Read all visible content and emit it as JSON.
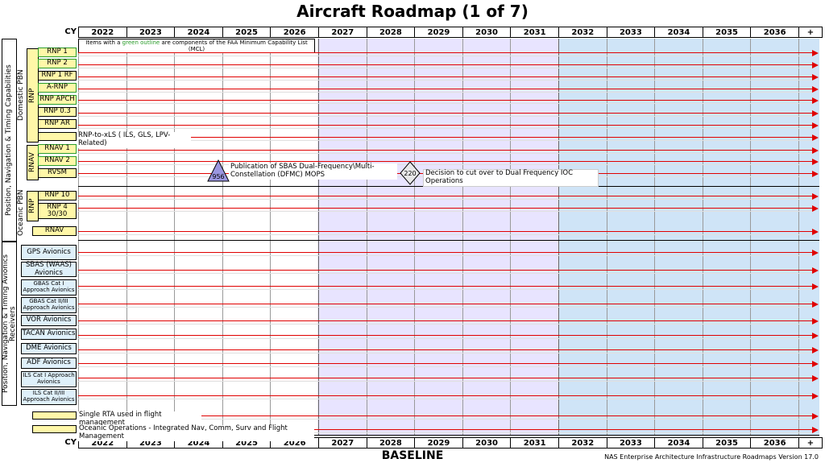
{
  "header": {
    "title": "Aircraft Roadmap (1 of 7)"
  },
  "timeline": {
    "cy_label": "CY",
    "years": [
      "2022",
      "2023",
      "2024",
      "2025",
      "2026",
      "2027",
      "2028",
      "2029",
      "2030",
      "2031",
      "2032",
      "2033",
      "2034",
      "2035",
      "2036",
      "+"
    ]
  },
  "legend": {
    "before": "Items with a ",
    "green": "green outline",
    "after": " are components of the FAA Minimum Capability List (MCL)"
  },
  "groups": {
    "pnt_capabilities": "Position, Navigation & Timing Capabilities",
    "domestic_pbn": "Domestic PBN",
    "rnp": "RNP",
    "rnav": "RNAV",
    "oceanic_pbn": "Oceanic PBN",
    "oceanic_rnp": "RNP",
    "avionics": "Position, Navigation & Timing Avionics Receivers"
  },
  "items": {
    "rnp1": "RNP 1",
    "rnp2": "RNP 2",
    "rnp1rf": "RNP 1 RF",
    "arnp": "A-RNP",
    "rnpapch": "RNP APCH",
    "rnp03": "RNP 0.3",
    "rnpar": "RNP AR",
    "rnpxls": "RNP-to-xLS ( ILS, GLS, LPV-Related)",
    "rnav1": "RNAV 1",
    "rnav2": "RNAV 2",
    "rvsm": "RVSM",
    "rnp10": "RNP 10",
    "rnp4": "RNP 4 30/30",
    "rnav": "RNAV",
    "gps": "GPS Avionics",
    "sbas": "SBAS (WAAS) Avionics",
    "gbas1": "GBAS Cat I Approach Avionics",
    "gbas23": "GBAS Cat II/III Approach Avionics",
    "vor": "VOR Avionics",
    "tacan": "TACAN Avionics",
    "dme": "DME Avionics",
    "adf": "ADF Avionics",
    "ils1": "ILS Cat I Approach Avionics",
    "ils23": "ILS Cat II/III Approach Avionics",
    "rta": "Single RTA used in flight management",
    "oceanic": "Oceanic Operations - Integrated Nav, Comm, Surv and Flight Management"
  },
  "milestones": {
    "m956_id": "956",
    "m956_text": "Publication of SBAS Dual-Frequency\\Multi-Constellation (DFMC) MOPS",
    "m220_id": "220",
    "m220_text": "Decision to cut over to Dual Frequency IOC Operations"
  },
  "footer": {
    "baseline": "BASELINE",
    "version": "NAS Enterprise Architecture Infrastructure Roadmaps Version 17.0"
  },
  "colors": {
    "arrow": "#e00000",
    "lavender": "#e8e4ff",
    "blue": "#cfe4f7",
    "item_fill": "#fff7a8",
    "mcl_outline": "#2a9d2a"
  }
}
